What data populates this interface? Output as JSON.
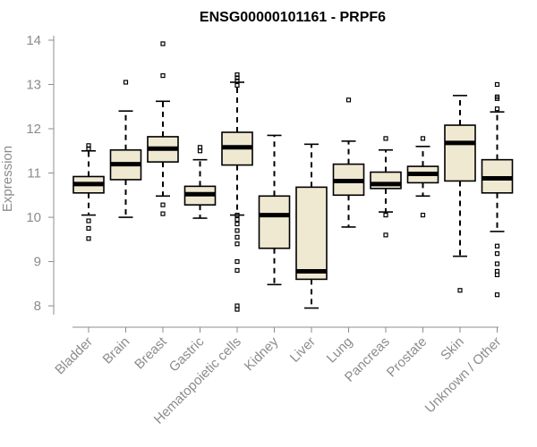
{
  "chart_data": {
    "type": "boxplot",
    "title": "ENSG00000101161 - PRPF6",
    "xlabel": "",
    "ylabel": "Expression",
    "ylim": [
      7.8,
      14.1
    ],
    "yticks": [
      8,
      9,
      10,
      11,
      12,
      13,
      14
    ],
    "box_fill": "#efe9d2",
    "categories": [
      "Bladder",
      "Brain",
      "Breast",
      "Gastric",
      "Hematopoietic cells",
      "Kidney",
      "Liver",
      "Lung",
      "Pancreas",
      "Prostate",
      "Skin",
      "Unknown / Other"
    ],
    "series": [
      {
        "name": "Bladder",
        "whisker_low": 10.05,
        "q1": 10.55,
        "median": 10.75,
        "q3": 10.92,
        "whisker_high": 11.5,
        "outliers": [
          11.55,
          11.62,
          9.92,
          9.75,
          9.52
        ]
      },
      {
        "name": "Brain",
        "whisker_low": 10.0,
        "q1": 10.85,
        "median": 11.2,
        "q3": 11.52,
        "whisker_high": 12.4,
        "outliers": [
          13.05
        ]
      },
      {
        "name": "Breast",
        "whisker_low": 10.48,
        "q1": 11.25,
        "median": 11.55,
        "q3": 11.82,
        "whisker_high": 12.62,
        "outliers": [
          13.92,
          13.2,
          10.28,
          10.08
        ]
      },
      {
        "name": "Gastric",
        "whisker_low": 9.98,
        "q1": 10.28,
        "median": 10.52,
        "q3": 10.7,
        "whisker_high": 11.3,
        "outliers": [
          11.58,
          11.5
        ]
      },
      {
        "name": "Hematopoietic cells",
        "whisker_low": 10.05,
        "q1": 11.18,
        "median": 11.58,
        "q3": 11.92,
        "whisker_high": 13.05,
        "outliers": [
          13.22,
          13.15,
          13.08,
          12.98,
          10.05,
          9.95,
          9.85,
          9.7,
          9.55,
          9.4,
          9.0,
          8.8,
          8.0,
          7.92
        ]
      },
      {
        "name": "Kidney",
        "whisker_low": 8.48,
        "q1": 9.3,
        "median": 10.05,
        "q3": 10.48,
        "whisker_high": 11.85,
        "outliers": []
      },
      {
        "name": "Liver",
        "whisker_low": 7.95,
        "q1": 8.6,
        "median": 8.78,
        "q3": 10.68,
        "whisker_high": 11.65,
        "outliers": []
      },
      {
        "name": "Lung",
        "whisker_low": 9.78,
        "q1": 10.5,
        "median": 10.82,
        "q3": 11.2,
        "whisker_high": 11.72,
        "outliers": [
          12.65
        ]
      },
      {
        "name": "Pancreas",
        "whisker_low": 10.12,
        "q1": 10.65,
        "median": 10.75,
        "q3": 11.02,
        "whisker_high": 11.52,
        "outliers": [
          11.78,
          10.05,
          9.6
        ]
      },
      {
        "name": "Prostate",
        "whisker_low": 10.48,
        "q1": 10.78,
        "median": 10.98,
        "q3": 11.15,
        "whisker_high": 11.6,
        "outliers": [
          11.78,
          10.05
        ]
      },
      {
        "name": "Skin",
        "whisker_low": 9.12,
        "q1": 10.82,
        "median": 11.68,
        "q3": 12.08,
        "whisker_high": 12.75,
        "outliers": [
          8.35
        ]
      },
      {
        "name": "Unknown / Other",
        "whisker_low": 9.68,
        "q1": 10.55,
        "median": 10.88,
        "q3": 11.3,
        "whisker_high": 12.38,
        "outliers": [
          13.0,
          12.72,
          12.68,
          12.45,
          9.35,
          9.18,
          8.95,
          8.78,
          8.7,
          8.25
        ]
      }
    ]
  }
}
